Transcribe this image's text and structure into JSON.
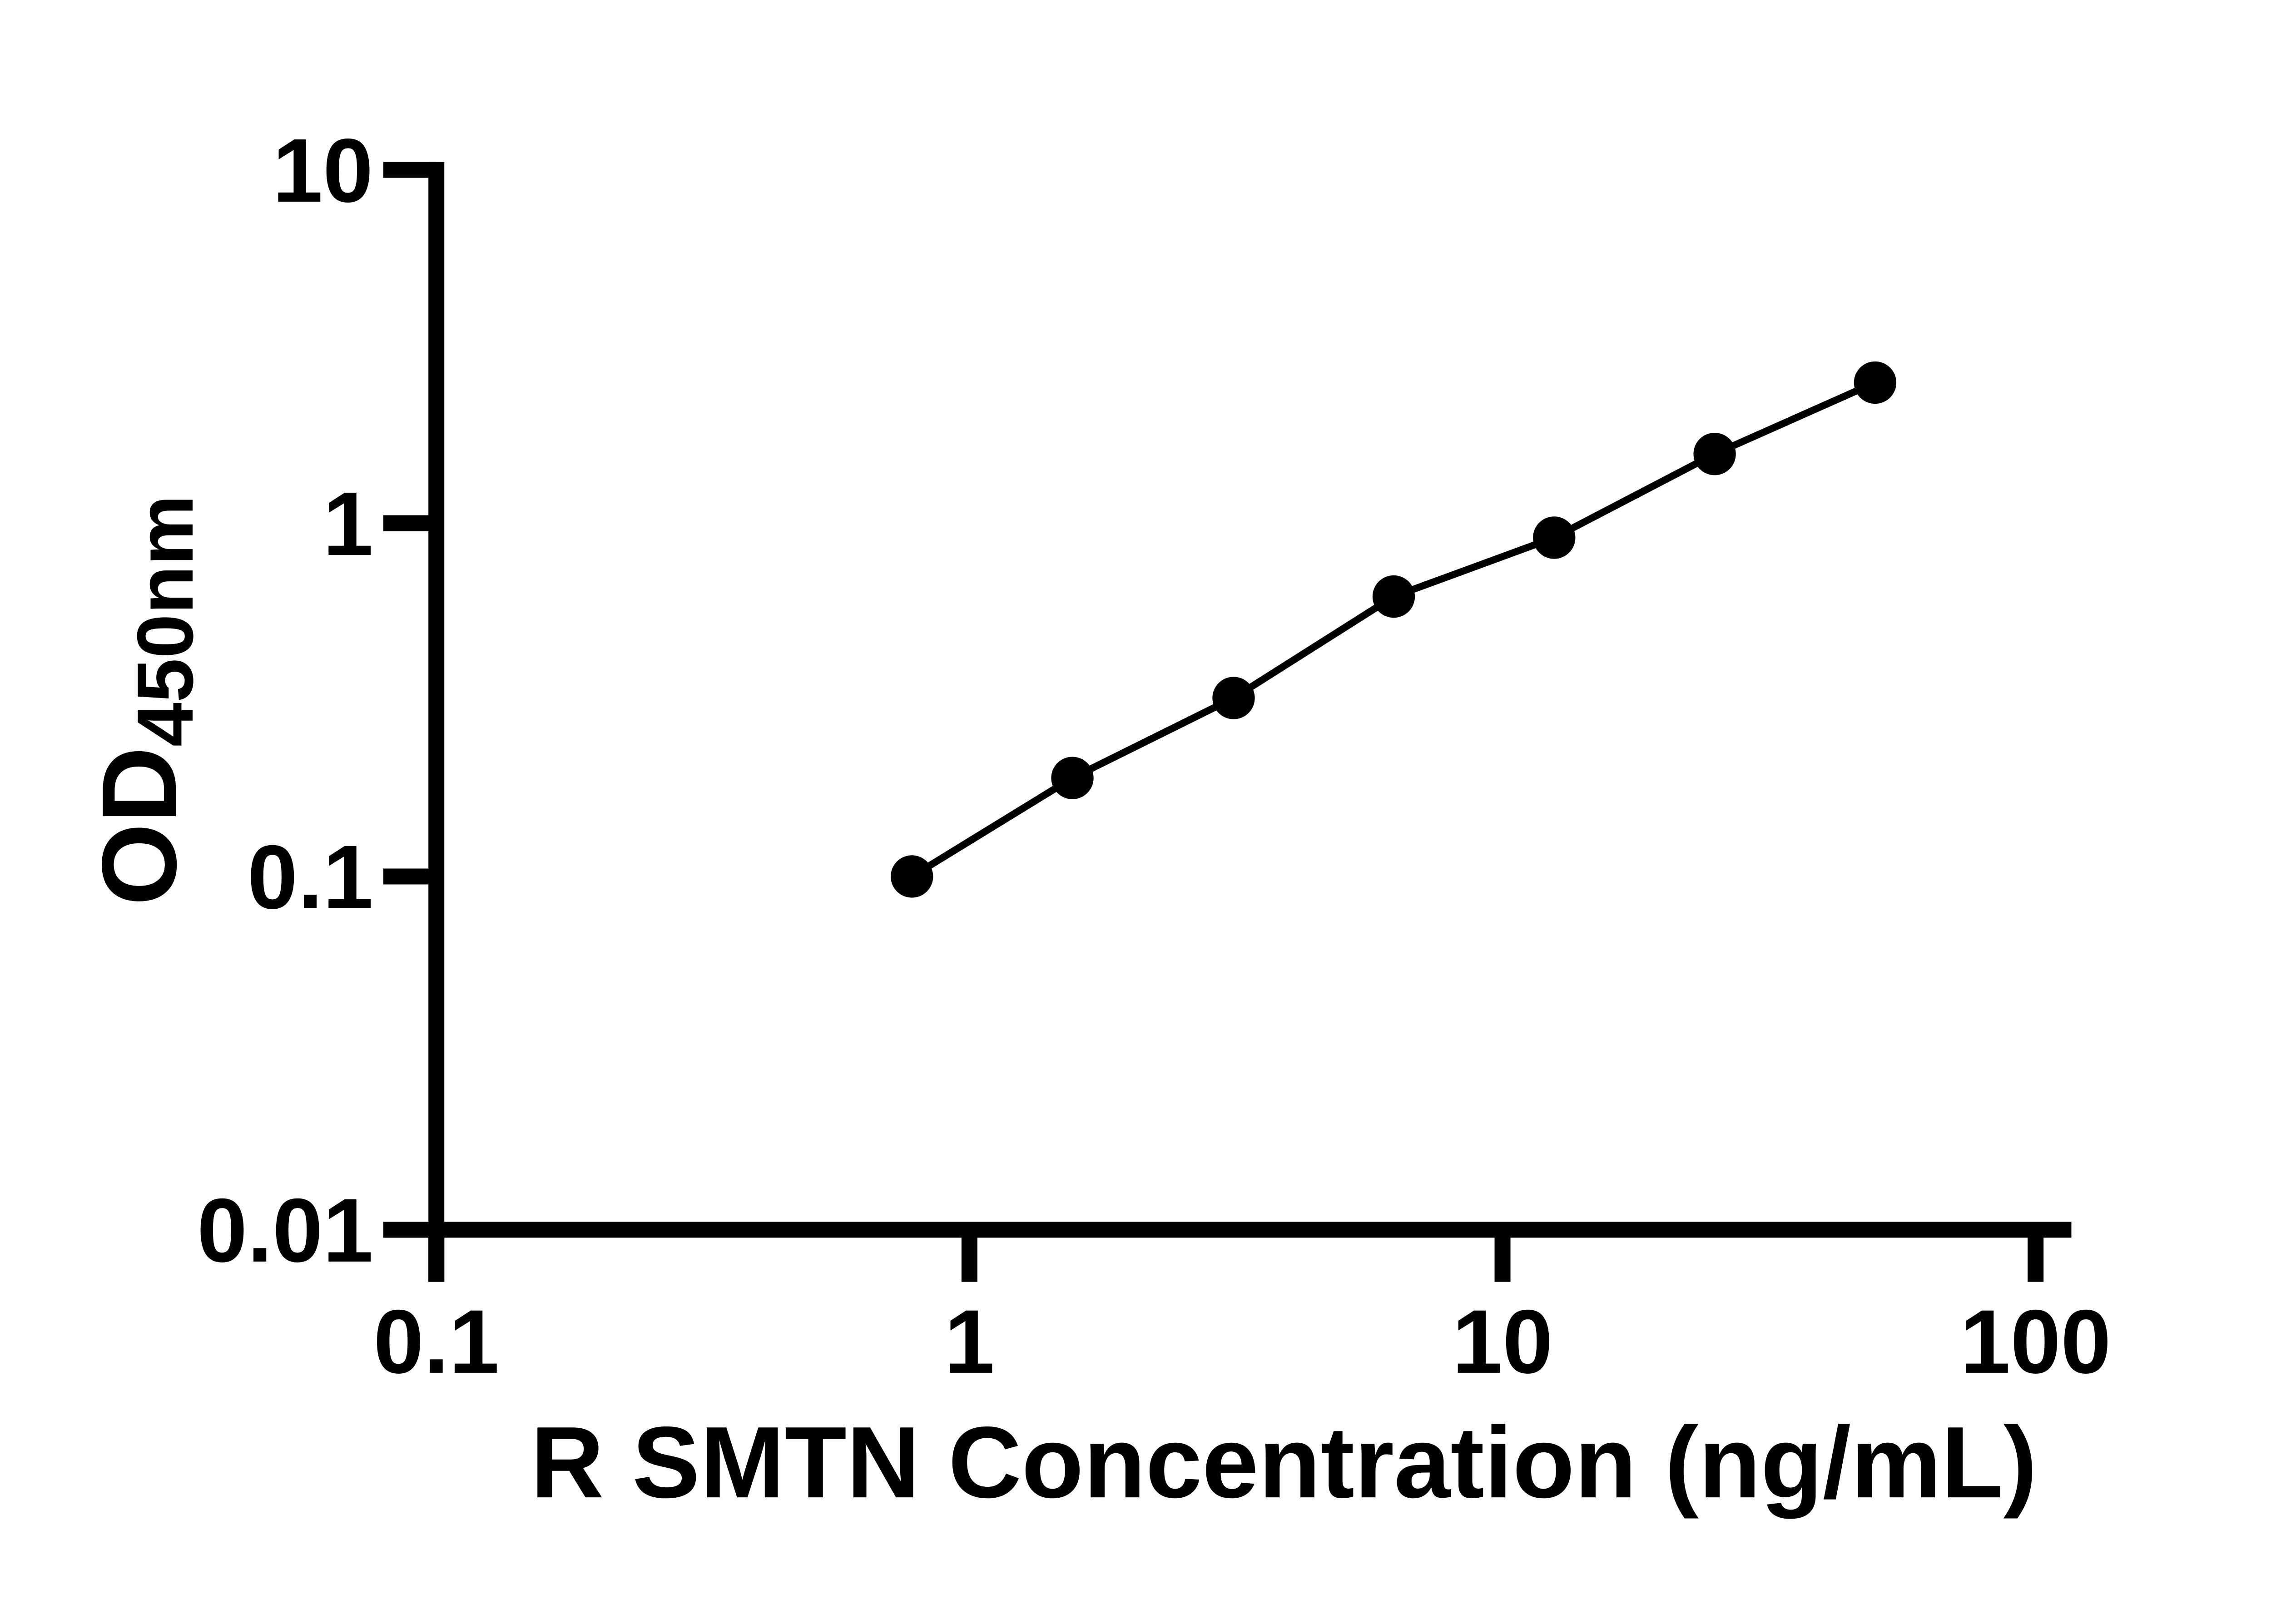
{
  "figure": {
    "background": "#ffffff",
    "ink_color": "#000000"
  },
  "chart_data": {
    "type": "scatter",
    "title": "",
    "xlabel": "R SMTN Concentration (ng/mL)",
    "ylabel_main": "OD",
    "ylabel_sub": "450nm",
    "x_scale": "log",
    "y_scale": "log",
    "xlim": [
      0.1,
      100
    ],
    "ylim": [
      0.01,
      10
    ],
    "x_ticks": [
      {
        "value": 0.1,
        "label": "0.1"
      },
      {
        "value": 1,
        "label": "1"
      },
      {
        "value": 10,
        "label": "10"
      },
      {
        "value": 100,
        "label": "100"
      }
    ],
    "y_ticks": [
      {
        "value": 10,
        "label": "10"
      },
      {
        "value": 1,
        "label": "1"
      },
      {
        "value": 0.1,
        "label": "0.1"
      },
      {
        "value": 0.01,
        "label": "0.01"
      }
    ],
    "grid": false,
    "legend": false,
    "marker": "filled-circle",
    "series": [
      {
        "points": [
          {
            "x": 0.78,
            "y": 0.1
          },
          {
            "x": 1.56,
            "y": 0.19
          },
          {
            "x": 3.13,
            "y": 0.32
          },
          {
            "x": 6.25,
            "y": 0.62
          },
          {
            "x": 12.5,
            "y": 0.91
          },
          {
            "x": 25,
            "y": 1.57
          },
          {
            "x": 50,
            "y": 2.5
          }
        ]
      }
    ]
  }
}
